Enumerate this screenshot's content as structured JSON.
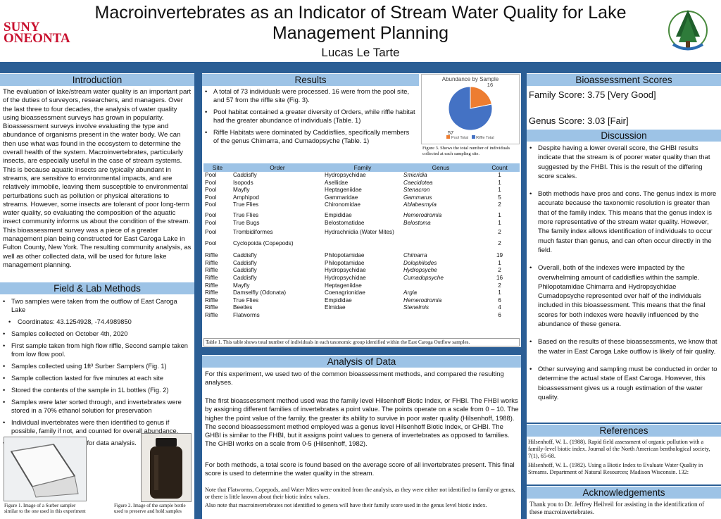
{
  "header": {
    "institution_line1": "SUNY",
    "institution_line2": "ONEONTA",
    "title_line1": "Macroinvertebrates as an Indicator of Stream Water Quality for Lake",
    "title_line2": "Management Planning",
    "author": "Lucas Le Tarte"
  },
  "colors": {
    "band": "#2b5e95",
    "header_bar": "#9dc3e6",
    "suny_red": "#c8102e",
    "pool_slice": "#ed7d31",
    "riffle_slice": "#4472c4"
  },
  "introduction": {
    "heading": "Introduction",
    "text": "The evaluation of lake/stream water quality is an important part of the duties of surveyors, researchers, and managers. Over the last three to four decades, the analysis of water quality using bioassessment surveys has grown in popularity. Bioassessment surveys involve evaluating the type and abundance of organisms present in the water body. We can then use what was found in the ecosystem to determine the overall health of the system. Macroinvertebrates, particularly insects, are especially useful in the case of stream systems. This is because aquatic insects are typically abundant in streams, are sensitive to environmental impacts, and are relatively immobile, leaving them susceptible to environmental perturbations such as pollution or physical alterations to streams. However, some insects are tolerant of poor long-term water quality, so evaluating the composition of the aquatic insect community informs us about the condition of the stream. This bioassessment survey was a piece of a greater management plan being constructed for East Caroga Lake in Fulton County, New York. The resulting community analysis, as well as other collected data, will be used for future lake management planning."
  },
  "methods": {
    "heading": "Field & Lab Methods",
    "items": [
      "Two samples were taken from the outflow of East Caroga Lake",
      "Coordinates: 43.1254928, -74.4989850",
      "Samples collected on October 4th, 2020",
      "First sample taken from high flow riffle, Second sample taken from low flow pool.",
      "Samples collected using 1ft³ Surber Samplers (Fig. 1)",
      "Sample collection lasted for five minutes at each site",
      "Stored the contents of the sample in 1L bottles (Fig. 2)",
      "Samples were later sorted through, and invertebrates were stored in a 70% ethanol solution for preservation",
      "Individual invertebrates were then identified to genus if possible, family if not, and counted for overall abundance.",
      "Microsoft Excel was used for data analysis."
    ],
    "fig1_caption": "Figure 1. Image of a Surber sampler similar to the one used in this experiment",
    "fig2_caption": "Figure 2. Image of the sample bottle used to preserve and hold samples"
  },
  "results": {
    "heading": "Results",
    "items": [
      "A total of 73 individuals were processed. 16 were from the pool site, and 57 from the riffle site (Fig. 3).",
      "Pool habitat contained a greater diversity of Orders, while riffle habitat had the greater abundance of individuals (Table. 1)",
      "Riffle Habitats were dominated by Caddisflies, specifically members of the genus Chimarra, and Cumadopsyche (Table. 1)"
    ],
    "fig3_caption": "Figure 3. Shows the total number of individuals collected at each sampling site.",
    "table_caption": "Table 1. This table shows total number of individuals in each taxonomic group identified within the East Caroga Outflow samples."
  },
  "chart_data": {
    "type": "pie",
    "title": "Abundance by Sample",
    "categories": [
      "Pool Total",
      "Riffle Total"
    ],
    "values": [
      16,
      57
    ],
    "legend": "bottom"
  },
  "table": {
    "headers": [
      "Site",
      "Order",
      "Family",
      "Genus",
      "Count"
    ],
    "rows": [
      [
        "Pool",
        "Caddisfly",
        "Hydropsychidae",
        "Smicridia",
        "1"
      ],
      [
        "Pool",
        "Isopods",
        "Asellidae",
        "Caecidotea",
        "1"
      ],
      [
        "Pool",
        "Mayfly",
        "Heptageniidae",
        "Stenacron",
        "1"
      ],
      [
        "Pool",
        "Amphipod",
        "Gammaridae",
        "Gammarus",
        "5"
      ],
      [
        "Pool",
        "True Flies",
        "Chironomidae",
        "Ablabesmyia",
        "2"
      ],
      [
        "Pool",
        "True Flies",
        "Empididae",
        "Hemerodromia",
        "1"
      ],
      [
        "Pool",
        "True Bugs",
        "Belostomatidae",
        "Belostoma",
        "1"
      ],
      [
        "Pool",
        "Trombidiformes",
        "Hydrachnidia (Water Mites)",
        "",
        "2"
      ],
      [
        "Pool",
        "Cyclopoida (Copepods)",
        "",
        "",
        "2"
      ],
      [
        "Riffle",
        "Caddisfly",
        "Philopotamidae",
        "Chimarra",
        "19"
      ],
      [
        "Riffle",
        "Caddisfly",
        "Philopotamidae",
        "Dolophilodes",
        "1"
      ],
      [
        "Riffle",
        "Caddisfly",
        "Hydropsychidae",
        "Hydropsyche",
        "2"
      ],
      [
        "Riffle",
        "Caddisfly",
        "Hydropsychidae",
        "Cumadopsyche",
        "16"
      ],
      [
        "Riffle",
        "Mayfly",
        "Heptageniidae",
        "",
        "2"
      ],
      [
        "Riffle",
        "Damselfly (Odonata)",
        "Coenagrionidae",
        "Argia",
        "1"
      ],
      [
        "Riffle",
        "True Flies",
        "Empididae",
        "Hemerodromia",
        "6"
      ],
      [
        "Riffle",
        "Beetles",
        "Elmidae",
        "Stenelmis",
        "4"
      ],
      [
        "Riffle",
        "Flatworms",
        "",
        "",
        "6"
      ]
    ]
  },
  "analysis": {
    "heading": "Analysis of Data",
    "p1": "For this experiment, we used two of the common bioassessment methods, and compared the resulting analyses.",
    "p2": "The first bioassessment method used was the family level Hilsenhoff Biotic Index, or FHBI. The FHBI works by assigning different families of invertebrates a point value. The points operate on a scale from 0 – 10. The higher the point value of the family, the greater its ability to survive in poor water quality (Hilsenhoff, 1988). The second bioassessment method employed was a genus level Hilsenhoff Biotic Index, or GHBI. The GHBI is similar to the FHBI, but it assigns point values to genera of invertebrates as opposed to families. The GHBI works on a scale from 0-5 (Hilsenhoff, 1982).",
    "p3": "For both methods, a total score is found based on the average score of all invertebrates present. This final score is used to determine the water quality in the stream.",
    "note1": "Note that Flatworms, Copepods, and Water Mites were omitted from the analysis, as they were either not identified to family or genus, or there is little known about their biotic index values.",
    "note2": "Also note that macroinvertebrates not identified to genera will have their family score used in the genus level biotic index."
  },
  "scores": {
    "heading": "Bioassessment Scores",
    "family": "Family Score: 3.75 [Very Good]",
    "genus": "Genus Score: 3.03 [Fair]"
  },
  "discussion": {
    "heading": "Discussion",
    "items": [
      "Despite having a lower overall score, the GHBI results indicate that the stream is of poorer water quality than that suggested by the FHBI. This is the result of the differing score scales.",
      "Both methods have pros and cons. The genus index is more accurate because the taxonomic resolution is greater than that of the family index. This means that the genus index is more representative of the stream water quality. However, The family index allows identification of individuals to occur much faster than genus, and can often occur directly in the field.",
      "Overall, both of the indexes were impacted by the overwhelming amount of caddisflies within the sample. Philopotamidae Chimarra and Hydropsychidae Cumadopsyche represented over half of the individuals included in this bioassessment. This means that the final scores for both indexes were heavily influenced by the abundance of these genera.",
      "Based on the results of these bioassessments, we know that the water in East Caroga Lake outflow is likely of fair quality.",
      "Other surveying and sampling must be conducted in order to determine the actual state of East Caroga. However, this bioassessment gives us a rough estimation of the water quality."
    ]
  },
  "references": {
    "heading": "References",
    "items": [
      "Hilsenhoff, W. L. (1988). Rapid field assessment of organic pollution with a family-level biotic index. Journal of the North American benthological society, 7(1), 65-68.",
      "Hilsenhoff, W. L. (1982). Using a Biotic Index to Evaluate Water Quality in Streams. Department of Natural Resources; Madison Wisconsin. 132:"
    ]
  },
  "acknowledgements": {
    "heading": "Acknowledgements",
    "text": "Thank you to Dr. Jeffrey Heilveil for assisting in the identification of these macroinvertebrates."
  }
}
